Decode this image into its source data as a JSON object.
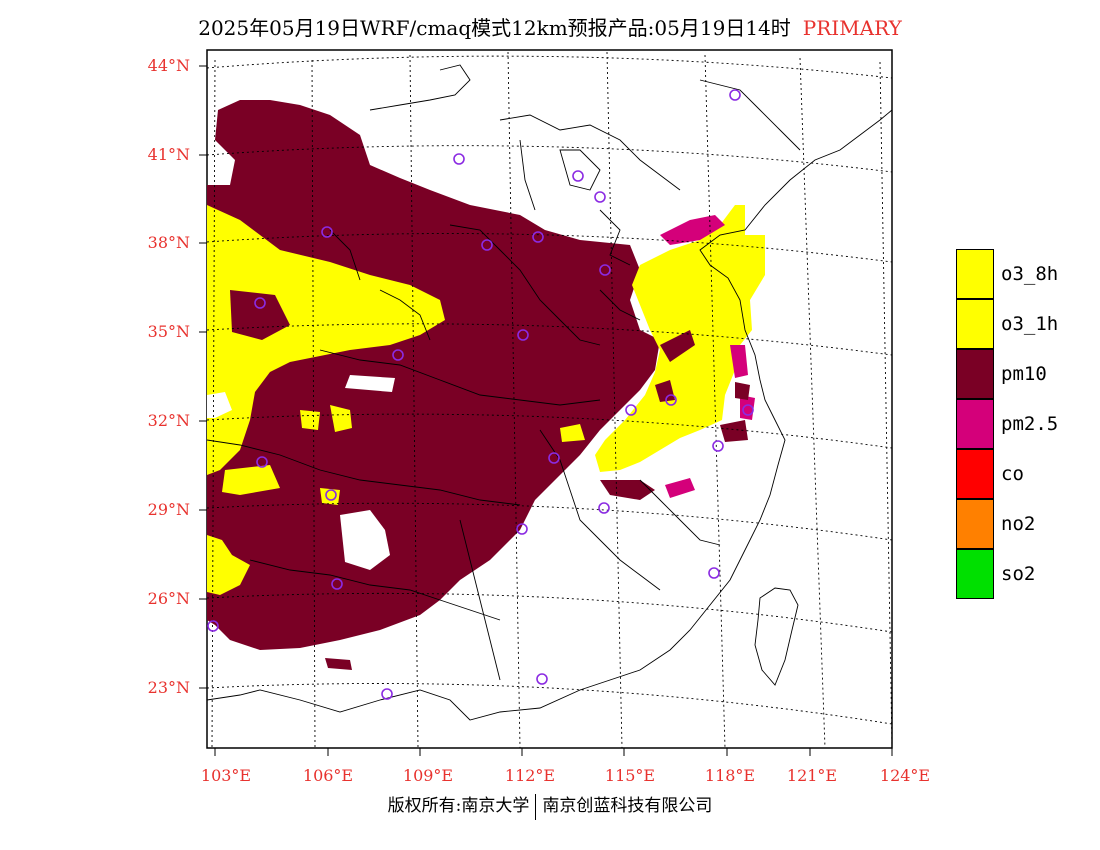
{
  "title": {
    "main": "2025年05月19日WRF/cmaq模式12km预报产品:05月19日14时",
    "tag": "PRIMARY"
  },
  "lat_ticks": [
    "44°N",
    "41°N",
    "38°N",
    "35°N",
    "32°N",
    "29°N",
    "26°N",
    "23°N"
  ],
  "lon_ticks": [
    "103°E",
    "106°E",
    "109°E",
    "112°E",
    "115°E",
    "118°E",
    "121°E",
    "124°E"
  ],
  "legend": [
    {
      "label": "o3_8h",
      "color": "#ffff00"
    },
    {
      "label": "o3_1h",
      "color": "#ffff00"
    },
    {
      "label": "pm10",
      "color": "#7a0025"
    },
    {
      "label": "pm2.5",
      "color": "#d4007a"
    },
    {
      "label": "co",
      "color": "#ff0000"
    },
    {
      "label": "no2",
      "color": "#ff8000"
    },
    {
      "label": "so2",
      "color": "#00e000"
    }
  ],
  "footer": {
    "left": "版权所有:南京大学",
    "right": "南京创蓝科技有限公司"
  },
  "colors": {
    "tick_label": "#e8322e",
    "station_marker": "#8b2be2"
  }
}
